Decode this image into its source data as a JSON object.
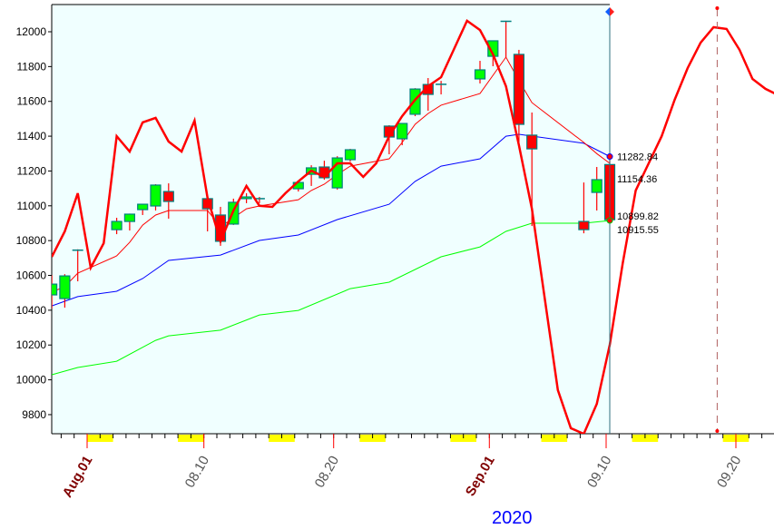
{
  "chart_data": {
    "type": "candlestick",
    "title": "",
    "xlabel": "",
    "year_label": "2020",
    "ylim": [
      9700,
      12150
    ],
    "y_ticks": [
      9800,
      10000,
      10200,
      10400,
      10600,
      10800,
      11000,
      11200,
      11400,
      11600,
      11800,
      12000
    ],
    "x_range": [
      "2020-07-29",
      "2020-09-22"
    ],
    "x_tick_labels": [
      {
        "date": "2020-08-01",
        "label": "Aug.01",
        "major": true
      },
      {
        "date": "2020-08-10",
        "label": "08.10",
        "major": false
      },
      {
        "date": "2020-08-20",
        "label": "08.20",
        "major": false
      },
      {
        "date": "2020-09-01",
        "label": "Sep.01",
        "major": true
      },
      {
        "date": "2020-09-10",
        "label": "09.10",
        "major": false
      },
      {
        "date": "2020-09-20",
        "label": "09.20",
        "major": false
      }
    ],
    "weekends": [
      "2020-08-01",
      "2020-08-08",
      "2020-08-15",
      "2020-08-22",
      "2020-08-29",
      "2020-09-05",
      "2020-09-12",
      "2020-09-19"
    ],
    "colors": {
      "up": "#00ff00",
      "down": "#ff0000",
      "border": "#008080",
      "background": "#f0ffff",
      "ma_fast": "#ff0000",
      "ma_mid": "#0000ff",
      "ma_slow": "#00ff00",
      "cycle": "#ff0000",
      "weekend": "#ffff00"
    },
    "candles": [
      {
        "date": "2020-07-29",
        "open": 10488,
        "high": 10600,
        "low": 10410,
        "close": 10550
      },
      {
        "date": "2020-07-30",
        "open": 10467,
        "high": 10607,
        "low": 10415,
        "close": 10597
      },
      {
        "date": "2020-07-31",
        "open": 10745,
        "high": 10750,
        "low": 10566,
        "close": 10745
      },
      {
        "date": "2020-08-03",
        "open": 10863,
        "high": 10931,
        "low": 10837,
        "close": 10910
      },
      {
        "date": "2020-08-04",
        "open": 10910,
        "high": 10955,
        "low": 10858,
        "close": 10952
      },
      {
        "date": "2020-08-05",
        "open": 10978,
        "high": 11012,
        "low": 10947,
        "close": 11009
      },
      {
        "date": "2020-08-06",
        "open": 10999,
        "high": 11124,
        "low": 10973,
        "close": 11119
      },
      {
        "date": "2020-08-07",
        "open": 11082,
        "high": 11129,
        "low": 10926,
        "close": 11025
      },
      {
        "date": "2020-08-10",
        "open": 11041,
        "high": 11041,
        "low": 10853,
        "close": 10983
      },
      {
        "date": "2020-08-11",
        "open": 10947,
        "high": 10994,
        "low": 10770,
        "close": 10796
      },
      {
        "date": "2020-08-12",
        "open": 10895,
        "high": 11041,
        "low": 10890,
        "close": 11020
      },
      {
        "date": "2020-08-13",
        "open": 11041,
        "high": 11072,
        "low": 11015,
        "close": 11051
      },
      {
        "date": "2020-08-14",
        "open": 11041,
        "high": 11051,
        "low": 11015,
        "close": 11036
      },
      {
        "date": "2020-08-17",
        "open": 11098,
        "high": 11140,
        "low": 11082,
        "close": 11134
      },
      {
        "date": "2020-08-18",
        "open": 11181,
        "high": 11233,
        "low": 11114,
        "close": 11218
      },
      {
        "date": "2020-08-19",
        "open": 11223,
        "high": 11259,
        "low": 11150,
        "close": 11161
      },
      {
        "date": "2020-08-20",
        "open": 11103,
        "high": 11285,
        "low": 11093,
        "close": 11275
      },
      {
        "date": "2020-08-21",
        "open": 11265,
        "high": 11327,
        "low": 11254,
        "close": 11322
      },
      {
        "date": "2020-08-24",
        "open": 11458,
        "high": 11463,
        "low": 11296,
        "close": 11395
      },
      {
        "date": "2020-08-25",
        "open": 11385,
        "high": 11473,
        "low": 11348,
        "close": 11473
      },
      {
        "date": "2020-08-26",
        "open": 11526,
        "high": 11676,
        "low": 11515,
        "close": 11671
      },
      {
        "date": "2020-08-27",
        "open": 11697,
        "high": 11734,
        "low": 11546,
        "close": 11640
      },
      {
        "date": "2020-08-28",
        "open": 11698,
        "high": 11718,
        "low": 11640,
        "close": 11698
      },
      {
        "date": "2020-08-31",
        "open": 11729,
        "high": 11833,
        "low": 11703,
        "close": 11781
      },
      {
        "date": "2020-09-01",
        "open": 11859,
        "high": 11948,
        "low": 11802,
        "close": 11948
      },
      {
        "date": "2020-09-02",
        "open": 12060,
        "high": 12063,
        "low": 11854,
        "close": 12060
      },
      {
        "date": "2020-09-03",
        "open": 11870,
        "high": 11896,
        "low": 11364,
        "close": 11468
      },
      {
        "date": "2020-09-04",
        "open": 11406,
        "high": 11536,
        "low": 10884,
        "close": 11327
      },
      {
        "date": "2020-09-08",
        "open": 10910,
        "high": 11134,
        "low": 10842,
        "close": 10863
      },
      {
        "date": "2020-09-09",
        "open": 11077,
        "high": 11223,
        "low": 10973,
        "close": 11150
      },
      {
        "date": "2020-09-10",
        "open": 11237,
        "high": 11282,
        "low": 10915,
        "close": 10920
      }
    ],
    "series": [
      {
        "key": "ma_fast",
        "points": [
          [
            "2020-07-29",
            10504
          ],
          [
            "2020-07-30",
            10535
          ],
          [
            "2020-07-31",
            10613
          ],
          [
            "2020-08-03",
            10712
          ],
          [
            "2020-08-04",
            10790
          ],
          [
            "2020-08-05",
            10889
          ],
          [
            "2020-08-06",
            10947
          ],
          [
            "2020-08-07",
            10973
          ],
          [
            "2020-08-10",
            10973
          ],
          [
            "2020-08-11",
            10879
          ],
          [
            "2020-08-12",
            10931
          ],
          [
            "2020-08-13",
            10983
          ],
          [
            "2020-08-14",
            10999
          ],
          [
            "2020-08-17",
            11035
          ],
          [
            "2020-08-18",
            11088
          ],
          [
            "2020-08-19",
            11124
          ],
          [
            "2020-08-20",
            11180
          ],
          [
            "2020-08-21",
            11228
          ],
          [
            "2020-08-24",
            11270
          ],
          [
            "2020-08-25",
            11364
          ],
          [
            "2020-08-26",
            11468
          ],
          [
            "2020-08-27",
            11530
          ],
          [
            "2020-08-28",
            11578
          ],
          [
            "2020-08-31",
            11645
          ],
          [
            "2020-09-01",
            11750
          ],
          [
            "2020-09-02",
            11854
          ],
          [
            "2020-09-03",
            11720
          ],
          [
            "2020-09-04",
            11593
          ],
          [
            "2020-09-08",
            11364
          ],
          [
            "2020-09-09",
            11300
          ],
          [
            "2020-09-10",
            11244
          ]
        ]
      },
      {
        "key": "ma_mid",
        "points": [
          [
            "2020-07-29",
            10425
          ],
          [
            "2020-07-31",
            10478
          ],
          [
            "2020-08-03",
            10509
          ],
          [
            "2020-08-05",
            10582
          ],
          [
            "2020-08-07",
            10686
          ],
          [
            "2020-08-11",
            10717
          ],
          [
            "2020-08-14",
            10801
          ],
          [
            "2020-08-17",
            10832
          ],
          [
            "2020-08-20",
            10921
          ],
          [
            "2020-08-24",
            11009
          ],
          [
            "2020-08-26",
            11140
          ],
          [
            "2020-08-28",
            11228
          ],
          [
            "2020-08-31",
            11270
          ],
          [
            "2020-09-02",
            11400
          ],
          [
            "2020-09-03",
            11411
          ],
          [
            "2020-09-08",
            11359
          ],
          [
            "2020-09-10",
            11283
          ]
        ]
      },
      {
        "key": "ma_slow",
        "points": [
          [
            "2020-07-29",
            10029
          ],
          [
            "2020-07-31",
            10071
          ],
          [
            "2020-08-03",
            10107
          ],
          [
            "2020-08-06",
            10227
          ],
          [
            "2020-08-07",
            10253
          ],
          [
            "2020-08-11",
            10285
          ],
          [
            "2020-08-14",
            10373
          ],
          [
            "2020-08-17",
            10399
          ],
          [
            "2020-08-21",
            10524
          ],
          [
            "2020-08-24",
            10561
          ],
          [
            "2020-08-28",
            10707
          ],
          [
            "2020-08-31",
            10764
          ],
          [
            "2020-09-02",
            10853
          ],
          [
            "2020-09-04",
            10900
          ],
          [
            "2020-09-08",
            10900
          ],
          [
            "2020-09-10",
            10915
          ]
        ]
      },
      {
        "key": "cycle",
        "points": [
          [
            "2020-07-29",
            10707
          ],
          [
            "2020-07-30",
            10853
          ],
          [
            "2020-07-31",
            11072
          ],
          [
            "2020-08-01",
            10644
          ],
          [
            "2020-08-02",
            10785
          ],
          [
            "2020-08-03",
            11400
          ],
          [
            "2020-08-04",
            11312
          ],
          [
            "2020-08-05",
            11479
          ],
          [
            "2020-08-06",
            11505
          ],
          [
            "2020-08-07",
            11369
          ],
          [
            "2020-08-08",
            11312
          ],
          [
            "2020-08-09",
            11489
          ],
          [
            "2020-08-10",
            11046
          ],
          [
            "2020-08-11",
            10796
          ],
          [
            "2020-08-12",
            10973
          ],
          [
            "2020-08-13",
            11114
          ],
          [
            "2020-08-14",
            11000
          ],
          [
            "2020-08-15",
            10994
          ],
          [
            "2020-08-16",
            11072
          ],
          [
            "2020-08-17",
            11140
          ],
          [
            "2020-08-18",
            11202
          ],
          [
            "2020-08-19",
            11166
          ],
          [
            "2020-08-20",
            11244
          ],
          [
            "2020-08-21",
            11244
          ],
          [
            "2020-08-22",
            11166
          ],
          [
            "2020-08-23",
            11244
          ],
          [
            "2020-08-24",
            11400
          ],
          [
            "2020-08-25",
            11515
          ],
          [
            "2020-08-26",
            11609
          ],
          [
            "2020-08-27",
            11687
          ],
          [
            "2020-08-28",
            11739
          ],
          [
            "2020-08-29",
            11901
          ],
          [
            "2020-08-30",
            12063
          ],
          [
            "2020-08-31",
            12010
          ],
          [
            "2020-09-01",
            11870
          ],
          [
            "2020-09-02",
            11687
          ],
          [
            "2020-09-03",
            11348
          ],
          [
            "2020-09-04",
            10983
          ],
          [
            "2020-09-05",
            10462
          ],
          [
            "2020-09-06",
            9941
          ],
          [
            "2020-09-07",
            9722
          ],
          [
            "2020-09-08",
            9690
          ],
          [
            "2020-09-09",
            9862
          ],
          [
            "2020-09-10",
            10201
          ],
          [
            "2020-09-11",
            10670
          ],
          [
            "2020-09-12",
            11088
          ],
          [
            "2020-09-13",
            11244
          ],
          [
            "2020-09-14",
            11400
          ],
          [
            "2020-09-15",
            11609
          ],
          [
            "2020-09-16",
            11791
          ],
          [
            "2020-09-17",
            11937
          ],
          [
            "2020-09-18",
            12026
          ],
          [
            "2020-09-19",
            12016
          ],
          [
            "2020-09-20",
            11896
          ],
          [
            "2020-09-21",
            11729
          ],
          [
            "2020-09-22",
            11672
          ],
          [
            "2020-09-23",
            11635
          ]
        ]
      }
    ],
    "current_date": "2020-09-10",
    "cycle_peak_marker_date": "2020-09-18",
    "value_labels": [
      {
        "value": 11282.84,
        "text": "11282.84"
      },
      {
        "value": 11154.36,
        "text": "11154.36"
      },
      {
        "value": 10899.82,
        "text": "10899.82"
      },
      {
        "value": 10915.55,
        "text": "10915.55"
      }
    ]
  }
}
